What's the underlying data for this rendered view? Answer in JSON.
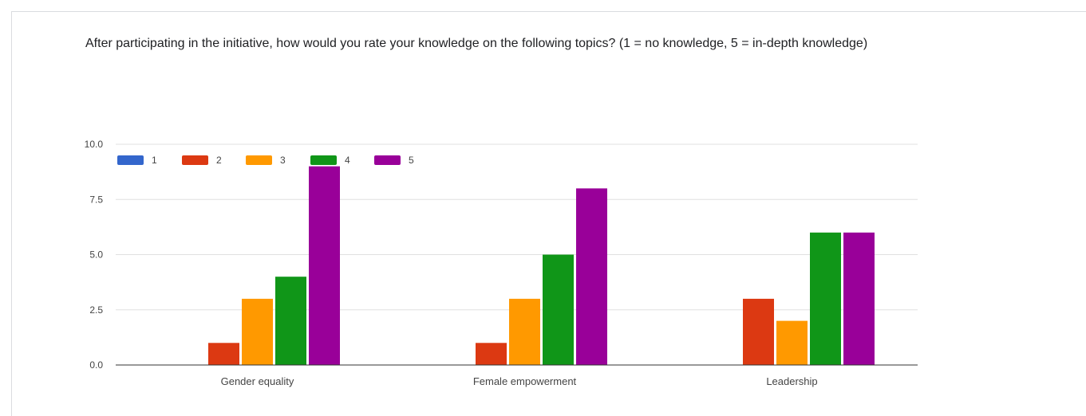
{
  "question": "After participating in the initiative, how would you rate your knowledge on the following topics? (1 = no knowledge, 5 = in-depth knowledge)",
  "colors": {
    "series_1": "#3366cc",
    "series_2": "#dc3912",
    "series_3": "#ff9900",
    "series_4": "#109618",
    "series_5": "#990099",
    "gridline": "#e0e0e0",
    "axis": "#333333",
    "label_text": "#444444"
  },
  "chart_data": {
    "type": "bar",
    "title": "",
    "xlabel": "",
    "ylabel": "",
    "categories": [
      "Gender equality",
      "Female empowerment",
      "Leadership"
    ],
    "series": [
      {
        "name": "1",
        "values": [
          0,
          0,
          0
        ]
      },
      {
        "name": "2",
        "values": [
          1,
          1,
          3
        ]
      },
      {
        "name": "3",
        "values": [
          3,
          3,
          2
        ]
      },
      {
        "name": "4",
        "values": [
          4,
          5,
          6
        ]
      },
      {
        "name": "5",
        "values": [
          9,
          8,
          6
        ]
      }
    ],
    "ylim": [
      0,
      10
    ],
    "yticks": [
      "0.0",
      "2.5",
      "5.0",
      "7.5",
      "10.0"
    ],
    "grid": true,
    "legend_position": "top-left"
  }
}
